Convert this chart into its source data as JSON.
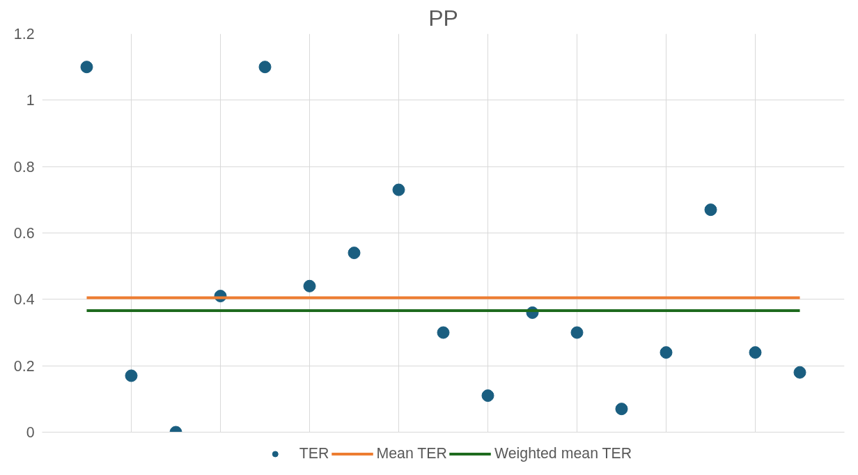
{
  "chart_data": {
    "type": "scatter",
    "title": "PP",
    "categories": [
      null,
      null,
      null,
      null,
      null,
      null,
      null,
      null,
      null,
      null,
      null,
      null,
      null,
      null,
      null,
      null,
      null
    ],
    "series": [
      {
        "name": "TER",
        "color": "#1a5e80",
        "values": [
          1.1,
          0.17,
          0,
          0.41,
          1.1,
          0.44,
          0.54,
          0.73,
          0.3,
          0.11,
          0.36,
          0.3,
          0.07,
          0.24,
          0.67,
          0.24,
          0.18
        ]
      }
    ],
    "ref_lines": [
      {
        "axis": "y",
        "value": 0.405,
        "label": "Mean TER",
        "color": "#ed7d31"
      },
      {
        "axis": "y",
        "value": 0.366,
        "label": "Weighted mean TER",
        "color": "#1e6b1e"
      }
    ],
    "ylim": [
      0,
      1.2
    ],
    "yticks": [
      0,
      0.2,
      0.4,
      0.6,
      0.8,
      1,
      1.2
    ],
    "marker": "circle",
    "grid": true,
    "legend": "bottom"
  }
}
